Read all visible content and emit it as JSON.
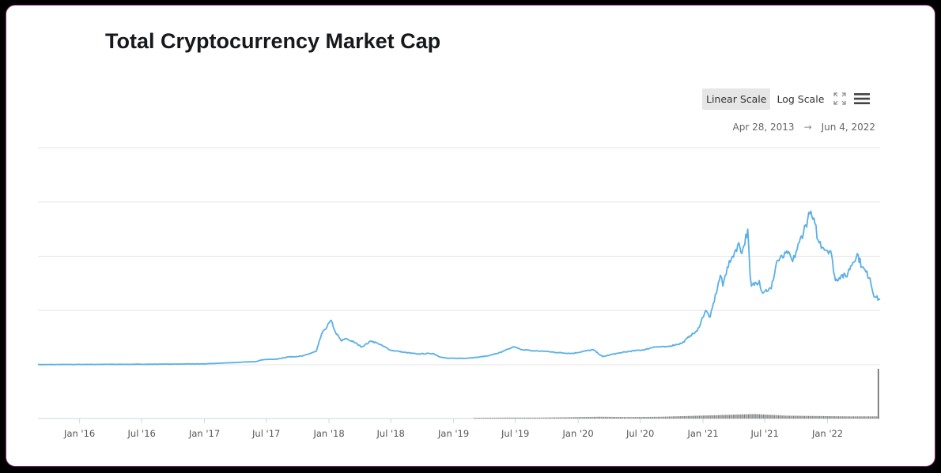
{
  "page": {
    "title": "Total Cryptocurrency Market Cap"
  },
  "toolbar": {
    "linear_label": "Linear Scale",
    "log_label": "Log Scale",
    "fullscreen_icon": "fullscreen-icon",
    "menu_icon": "hamburger-menu-icon",
    "active": "Linear Scale"
  },
  "date_range": {
    "from": "Apr 28, 2013",
    "arrow": "→",
    "to": "Jun 4, 2022"
  },
  "chart_data": {
    "type": "line",
    "title": "Total Cryptocurrency Market Cap",
    "xlabel": "",
    "ylabel": "",
    "scale": "linear",
    "x_tick_labels": [
      "Jan '16",
      "Jul '16",
      "Jan '17",
      "Jul '17",
      "Jan '18",
      "Jul '18",
      "Jan '19",
      "Jul '19",
      "Jan '20",
      "Jul '20",
      "Jan '21",
      "Jul '21",
      "Jan '22"
    ],
    "y_tick_labels": [],
    "grid": true,
    "legend": "none",
    "line_color": "#5aafe6",
    "volume_color": "#7f7f7f",
    "xlim": [
      "2015-09-01",
      "2022-06-04"
    ],
    "ylim": [
      0,
      4000
    ],
    "series": [
      {
        "x": [
          "2015-09-01",
          "2016-01-01",
          "2016-07-01",
          "2017-01-01",
          "2017-06-01",
          "2017-06-20",
          "2017-08-01",
          "2017-09-01",
          "2017-10-15",
          "2017-11-25",
          "2017-12-10",
          "2017-12-20",
          "2018-01-07",
          "2018-01-20",
          "2018-02-06",
          "2018-02-20",
          "2018-03-15",
          "2018-04-07",
          "2018-05-05",
          "2018-05-25",
          "2018-07-01",
          "2018-08-10",
          "2018-09-15",
          "2018-11-01",
          "2018-11-25",
          "2018-12-15",
          "2019-02-01",
          "2019-03-15",
          "2019-04-15",
          "2019-05-20",
          "2019-06-26",
          "2019-07-15",
          "2019-08-15",
          "2019-09-25",
          "2019-11-01",
          "2019-12-15",
          "2020-02-14",
          "2020-03-13",
          "2020-04-15",
          "2020-06-01",
          "2020-07-15",
          "2020-08-10",
          "2020-09-15",
          "2020-11-01",
          "2020-11-25",
          "2020-12-15",
          "2021-01-08",
          "2021-01-22",
          "2021-02-21",
          "2021-02-28",
          "2021-03-13",
          "2021-03-25",
          "2021-04-16",
          "2021-04-25",
          "2021-05-12",
          "2021-05-19",
          "2021-05-23",
          "2021-06-15",
          "2021-06-22",
          "2021-07-20",
          "2021-08-05",
          "2021-09-06",
          "2021-09-21",
          "2021-10-10",
          "2021-11-10",
          "2021-11-25",
          "2021-12-04",
          "2021-12-20",
          "2022-01-10",
          "2022-01-24",
          "2022-02-10",
          "2022-02-24",
          "2022-03-10",
          "2022-03-29",
          "2022-04-12",
          "2022-05-05",
          "2022-05-12",
          "2022-05-20",
          "2022-06-04"
        ],
        "values": [
          4,
          7,
          10,
          17,
          60,
          95,
          105,
          145,
          160,
          250,
          560,
          650,
          820,
          600,
          440,
          480,
          420,
          330,
          440,
          390,
          270,
          230,
          200,
          210,
          140,
          120,
          120,
          140,
          170,
          230,
          330,
          290,
          260,
          250,
          225,
          210,
          280,
          150,
          200,
          250,
          280,
          330,
          330,
          400,
          540,
          620,
          1000,
          880,
          1650,
          1450,
          1800,
          1950,
          2250,
          2050,
          2500,
          1650,
          1450,
          1550,
          1350,
          1400,
          1900,
          2050,
          1900,
          2250,
          2780,
          2600,
          2300,
          2150,
          2100,
          1550,
          1650,
          1620,
          1820,
          2050,
          1800,
          1600,
          1380,
          1250,
          1200
        ]
      }
    ],
    "volume": {
      "x": [
        "2019-03-01",
        "2019-06-01",
        "2019-09-01",
        "2019-12-01",
        "2020-03-01",
        "2020-06-01",
        "2020-09-01",
        "2020-12-01",
        "2021-03-01",
        "2021-06-01",
        "2021-09-01",
        "2021-12-01",
        "2022-03-01",
        "2022-05-28"
      ],
      "values": [
        0.4,
        0.5,
        0.5,
        0.7,
        1.0,
        0.8,
        1.0,
        1.5,
        2.0,
        2.5,
        1.6,
        1.4,
        1.2,
        28
      ]
    }
  }
}
